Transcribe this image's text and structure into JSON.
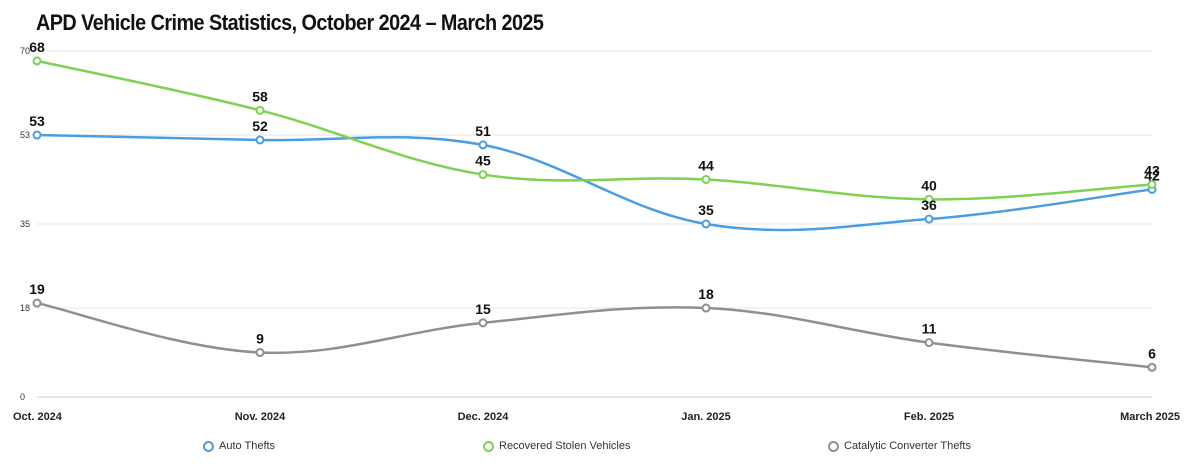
{
  "title": "APD Vehicle Crime Statistics, October 2024 – March 2025",
  "chart_data": {
    "type": "line",
    "categories": [
      "Oct. 2024",
      "Nov. 2024",
      "Dec. 2024",
      "Jan. 2025",
      "Feb. 2025",
      "March 2025"
    ],
    "y_ticks": [
      0,
      18,
      35,
      53,
      70
    ],
    "ylim": [
      0,
      70
    ],
    "grid": true,
    "legend_position": "bottom",
    "series": [
      {
        "name": "Auto Thefts",
        "color": "#4a9ee0",
        "values": [
          53,
          52,
          51,
          35,
          36,
          42
        ]
      },
      {
        "name": "Recovered Stolen Vehicles",
        "color": "#7ed154",
        "values": [
          68,
          58,
          45,
          44,
          40,
          43
        ]
      },
      {
        "name": "Catalytic Converter Thefts",
        "color": "#8f8f8f",
        "values": [
          19,
          9,
          15,
          18,
          11,
          6
        ]
      }
    ]
  }
}
